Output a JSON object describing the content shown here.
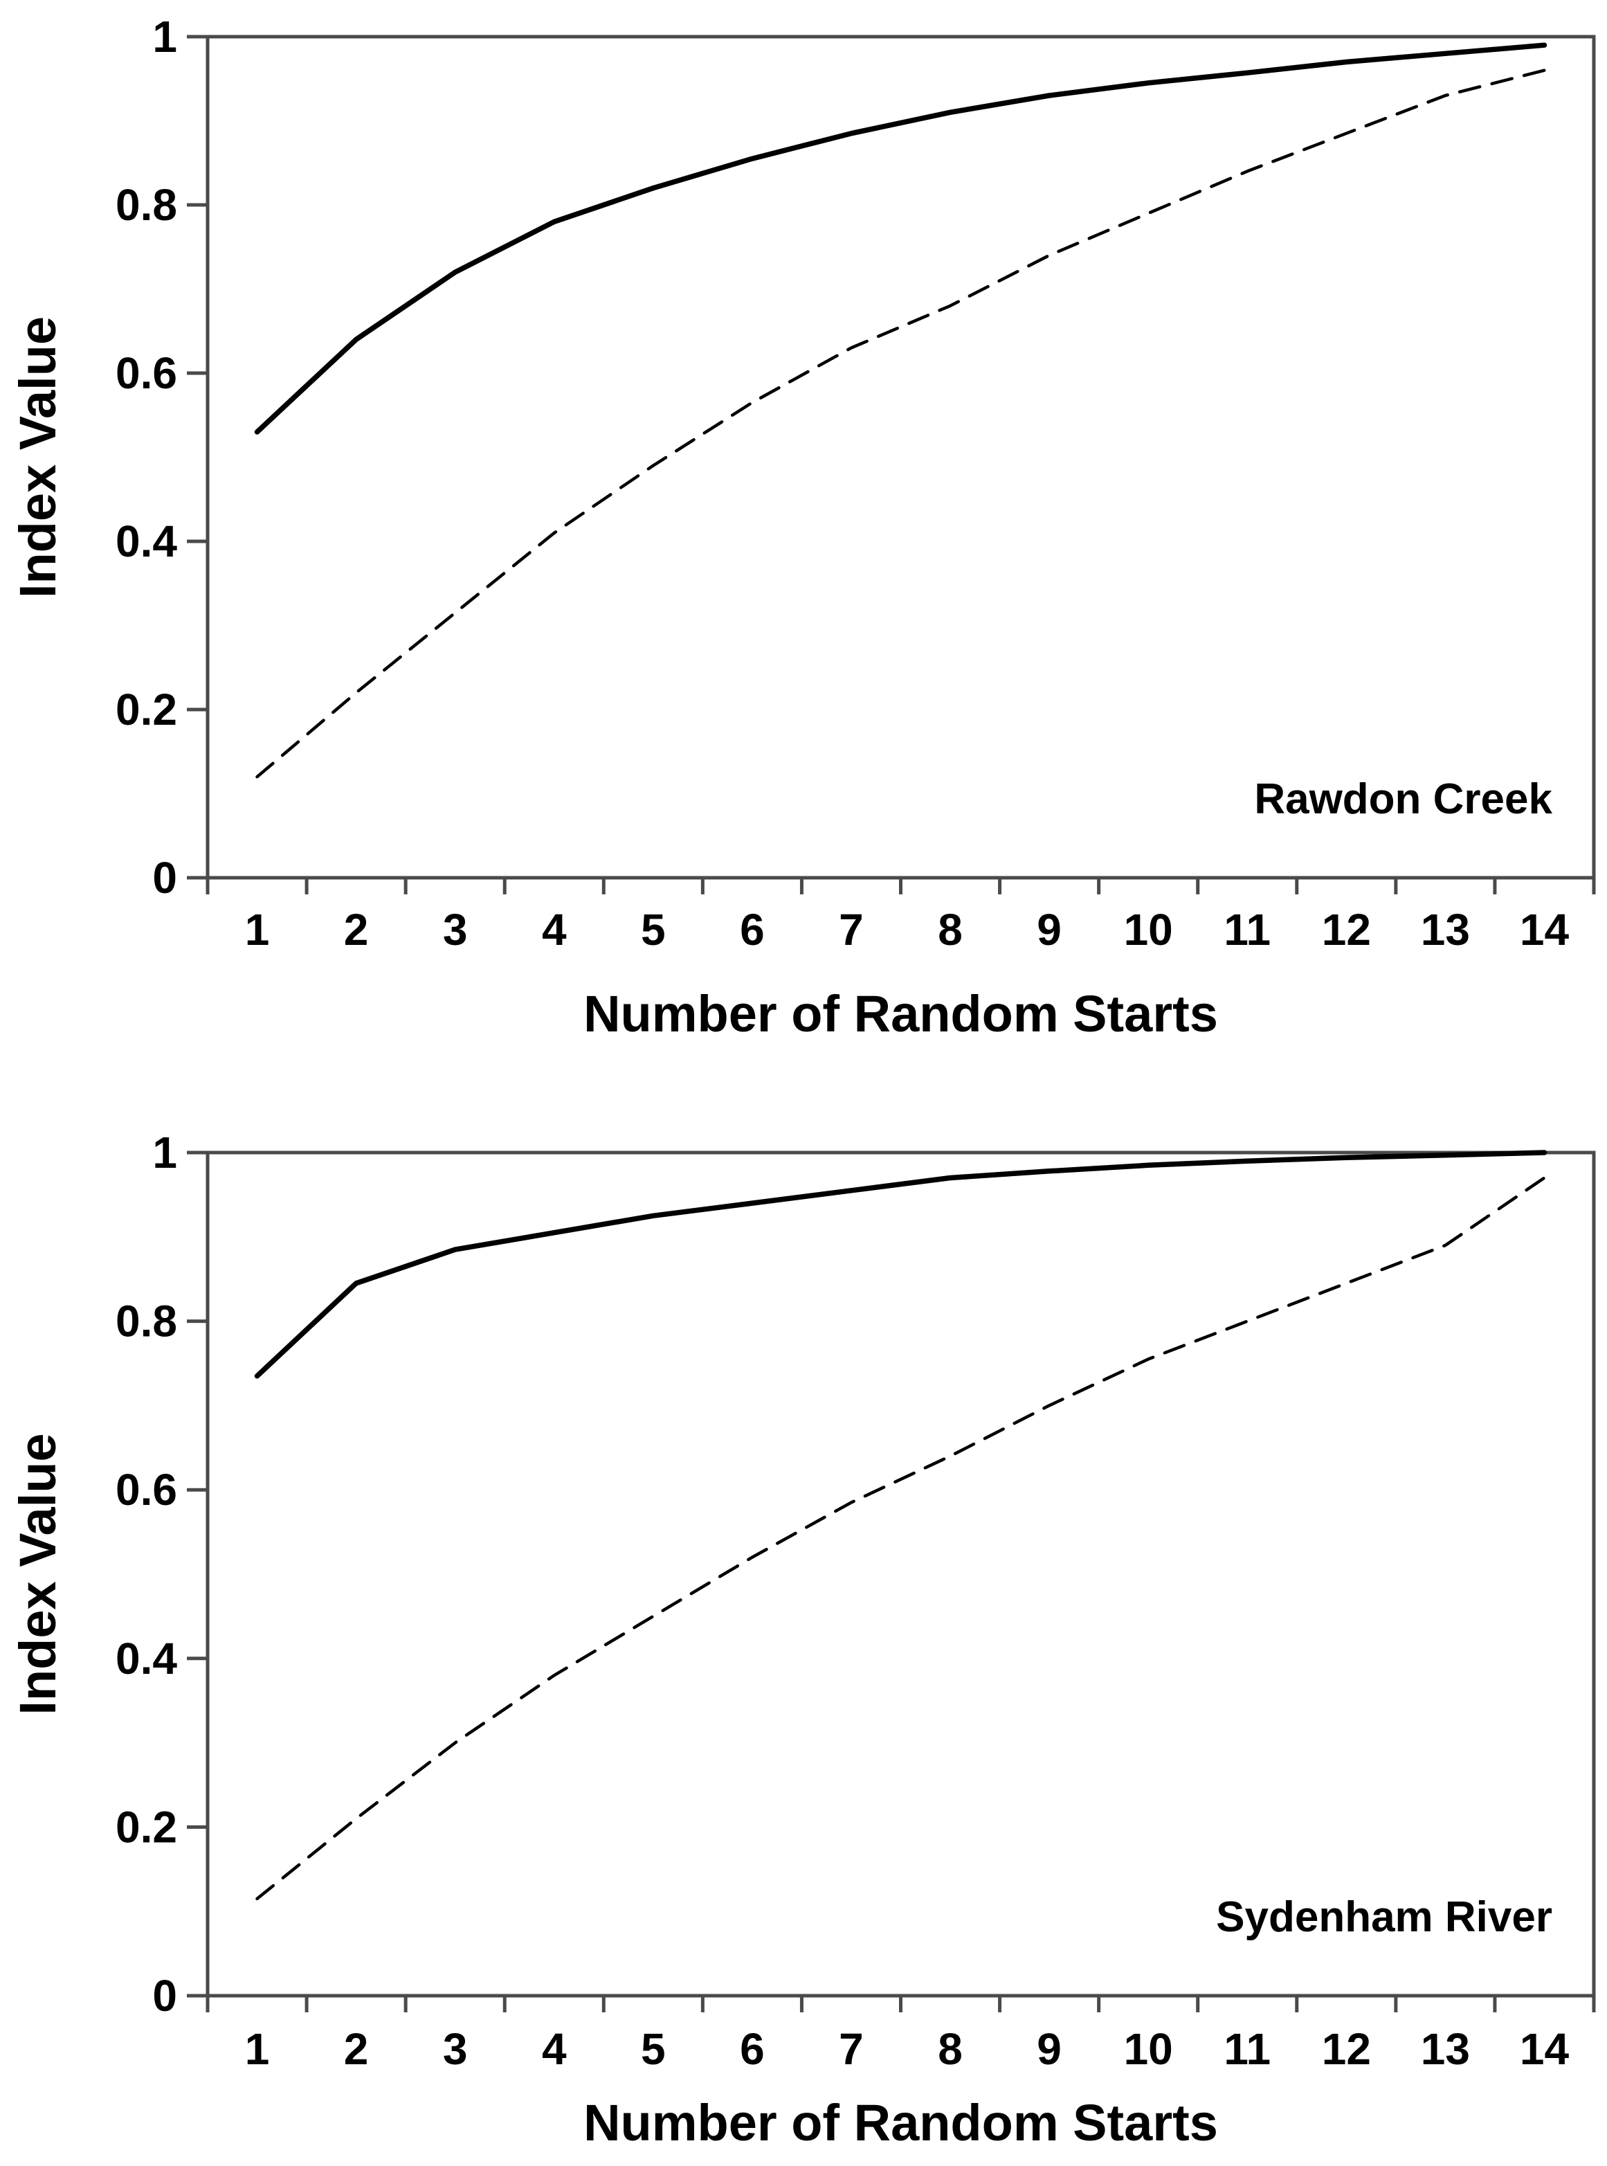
{
  "figure": {
    "background_color": "#ffffff",
    "line_color": "#000000",
    "axis_color": "#4a4a4a"
  },
  "chart_data": [
    {
      "type": "line",
      "panel_label": "Rawdon Creek",
      "xlabel": "Number of Random Starts",
      "ylabel": "Index Value",
      "x_categories": [
        "1",
        "2",
        "3",
        "4",
        "5",
        "6",
        "7",
        "8",
        "9",
        "10",
        "11",
        "12",
        "13",
        "14"
      ],
      "ytick_labels": [
        "0",
        "0.2",
        "0.4",
        "0.6",
        "0.8",
        "1"
      ],
      "yticks": [
        0,
        0.2,
        0.4,
        0.6,
        0.8,
        1
      ],
      "ylim": [
        0,
        1
      ],
      "grid": false,
      "legend": "none",
      "series": [
        {
          "name": "solid",
          "style": "solid",
          "values": [
            0.53,
            0.64,
            0.72,
            0.78,
            0.82,
            0.855,
            0.885,
            0.91,
            0.93,
            0.945,
            0.957,
            0.97,
            0.98,
            0.99
          ]
        },
        {
          "name": "dashed",
          "style": "dashed",
          "values": [
            0.12,
            0.22,
            0.315,
            0.41,
            0.49,
            0.565,
            0.63,
            0.68,
            0.74,
            0.79,
            0.84,
            0.885,
            0.93,
            0.96
          ]
        }
      ]
    },
    {
      "type": "line",
      "panel_label": "Sydenham River",
      "xlabel": "Number of Random Starts",
      "ylabel": "Index Value",
      "x_categories": [
        "1",
        "2",
        "3",
        "4",
        "5",
        "6",
        "7",
        "8",
        "9",
        "10",
        "11",
        "12",
        "13",
        "14"
      ],
      "ytick_labels": [
        "0",
        "0.2",
        "0.4",
        "0.6",
        "0.8",
        "1"
      ],
      "yticks": [
        0,
        0.2,
        0.4,
        0.6,
        0.8,
        1
      ],
      "ylim": [
        0,
        1
      ],
      "grid": false,
      "legend": "none",
      "series": [
        {
          "name": "solid",
          "style": "solid",
          "values": [
            0.735,
            0.845,
            0.885,
            0.905,
            0.925,
            0.94,
            0.955,
            0.97,
            0.978,
            0.985,
            0.99,
            0.994,
            0.997,
            1.0
          ]
        },
        {
          "name": "dashed",
          "style": "dashed",
          "values": [
            0.115,
            0.21,
            0.3,
            0.38,
            0.45,
            0.52,
            0.585,
            0.64,
            0.7,
            0.755,
            0.8,
            0.845,
            0.89,
            0.97
          ]
        }
      ]
    }
  ]
}
